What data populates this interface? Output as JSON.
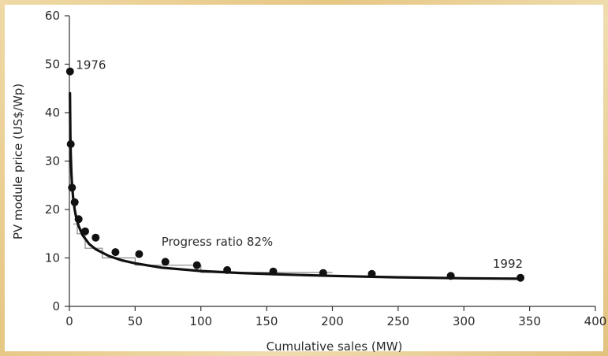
{
  "chart_data": {
    "type": "line",
    "title": "",
    "xlabel": "Cumulative sales (MW)",
    "ylabel": "PV module price (US$/Wp)",
    "xlim": [
      0,
      400
    ],
    "ylim": [
      0,
      60
    ],
    "xticks": [
      0,
      50,
      100,
      150,
      200,
      250,
      300,
      350,
      400
    ],
    "yticks": [
      0,
      10,
      20,
      30,
      40,
      50,
      60
    ],
    "grid": false,
    "legend": "none",
    "series": [
      {
        "kind": "points",
        "x": [
          0.5,
          1,
          2,
          4,
          7,
          12,
          20,
          35,
          53,
          73,
          97,
          120,
          155,
          193,
          230,
          290,
          343
        ],
        "y": [
          48.5,
          33.5,
          24.5,
          21.5,
          18,
          15.5,
          14.2,
          11.2,
          10.8,
          9.2,
          8.5,
          7.5,
          7.2,
          6.9,
          6.7,
          6.3,
          5.9
        ]
      },
      {
        "kind": "fit",
        "x": [
          0.4,
          0.7,
          1,
          1.5,
          2,
          3,
          4,
          5,
          7,
          10,
          15,
          20,
          30,
          40,
          50,
          70,
          100,
          130,
          160,
          200,
          250,
          300,
          343
        ],
        "y": [
          44,
          35.5,
          31.5,
          27.6,
          25.1,
          22.0,
          20.0,
          18.6,
          16.6,
          14.7,
          12.9,
          11.8,
          10.4,
          9.5,
          8.9,
          8.0,
          7.3,
          6.9,
          6.6,
          6.3,
          6.0,
          5.8,
          5.7
        ]
      },
      {
        "kind": "steps",
        "x": [
          3,
          6,
          6,
          12,
          12,
          25,
          25,
          50,
          50,
          100,
          100,
          200
        ],
        "y": [
          17,
          17,
          15,
          15,
          12,
          12,
          10,
          10,
          8.5,
          8.5,
          7,
          7
        ]
      }
    ],
    "annotations": [
      {
        "text": "1976",
        "x": 5,
        "y": 49
      },
      {
        "text": "Progress ratio 82%",
        "x": 70,
        "y": 12.5
      },
      {
        "text": "1992",
        "x": 322,
        "y": 8
      }
    ],
    "colors": {
      "points": "#111111",
      "fit": "#111111",
      "steps": "#888888",
      "axis": "#333333"
    }
  }
}
